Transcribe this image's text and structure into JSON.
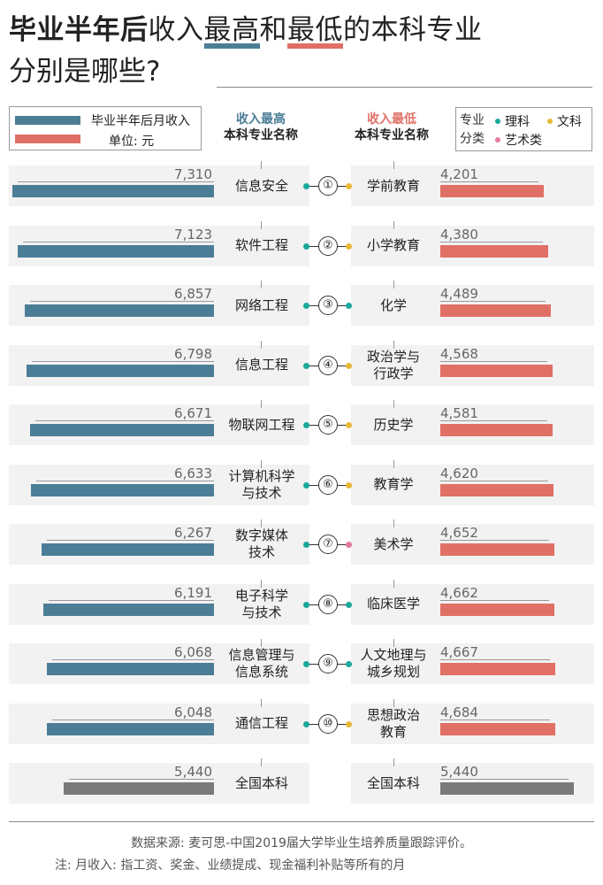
{
  "title": {
    "line1": {
      "bold": "毕业半年后",
      "part_a": "收入",
      "hl_high": "最高",
      "part_b": "和",
      "hl_low": "最低",
      "part_c": "的本科专业"
    },
    "line2": "分别是哪些?"
  },
  "legend": {
    "series_label": "毕业半年后月收入",
    "unit": "单位: 元",
    "blue": "#4c7d97",
    "red": "#e07065",
    "gray": "#7a7a7a"
  },
  "columns": {
    "high_top": "收入最高",
    "high_bottom": "本科专业名称",
    "low_top": "收入最低",
    "low_bottom": "本科专业名称"
  },
  "categories": {
    "label_top": "专业",
    "label_bottom": "分类",
    "science": "理科",
    "liberal": "文科",
    "art": "艺术类",
    "science_color": "#1aa89c",
    "liberal_color": "#e9b838",
    "art_color": "#e47aa0"
  },
  "chart_data": {
    "type": "bar",
    "unit": "元",
    "highest": [
      {
        "rank": "①",
        "name": "信息安全",
        "value": 7310
      },
      {
        "rank": "②",
        "name": "软件工程",
        "value": 7123
      },
      {
        "rank": "③",
        "name": "网络工程",
        "value": 6857
      },
      {
        "rank": "④",
        "name": "信息工程",
        "value": 6798
      },
      {
        "rank": "⑤",
        "name": "物联网工程",
        "value": 6671
      },
      {
        "rank": "⑥",
        "name": "计算机科学\n与技术",
        "value": 6633
      },
      {
        "rank": "⑦",
        "name": "数字媒体\n技术",
        "value": 6267
      },
      {
        "rank": "⑧",
        "name": "电子科学\n与技术",
        "value": 6191
      },
      {
        "rank": "⑨",
        "name": "信息管理与\n信息系统",
        "value": 6068
      },
      {
        "rank": "⑩",
        "name": "通信工程",
        "value": 6048
      }
    ],
    "lowest": [
      {
        "name": "学前教育",
        "value": 4201,
        "category": "liberal"
      },
      {
        "name": "小学教育",
        "value": 4380,
        "category": "liberal"
      },
      {
        "name": "化学",
        "value": 4489,
        "category": "science"
      },
      {
        "name": "政治学与\n行政学",
        "value": 4568,
        "category": "liberal"
      },
      {
        "name": "历史学",
        "value": 4581,
        "category": "liberal"
      },
      {
        "name": "教育学",
        "value": 4620,
        "category": "liberal"
      },
      {
        "name": "美术学",
        "value": 4652,
        "category": "art"
      },
      {
        "name": "临床医学",
        "value": 4662,
        "category": "science"
      },
      {
        "name": "人文地理与\n城乡规划",
        "value": 4667,
        "category": "science"
      },
      {
        "name": "思想政治\n教育",
        "value": 4684,
        "category": "liberal"
      }
    ],
    "national": {
      "name": "全国本科",
      "value": 5440
    }
  },
  "footer": {
    "source": "数据来源: 麦可思-中国2019届大学毕业生培养质量跟踪评价。",
    "note": "注: 月收入: 指工资、奖金、业绩提成、现金福利补贴等所有的月"
  }
}
